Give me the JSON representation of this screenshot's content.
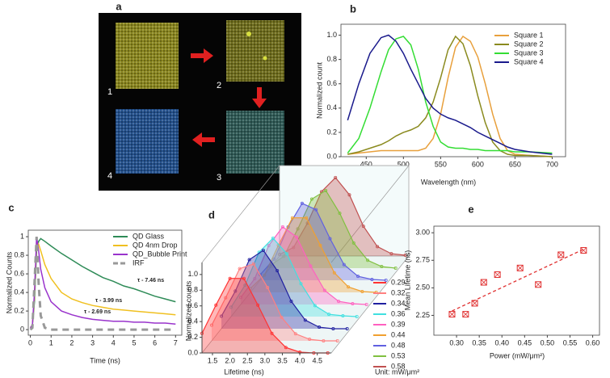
{
  "image_panel": {
    "panel": "a",
    "squares": [
      "1",
      "2",
      "3",
      "4"
    ]
  },
  "chart_data": [
    {
      "type": "line",
      "panel": "b",
      "x_label": "Wavelength (nm)",
      "y_label": "Normalized count",
      "legend": "upper right",
      "x": [
        425,
        440,
        455,
        470,
        480,
        490,
        500,
        510,
        520,
        530,
        540,
        550,
        560,
        570,
        580,
        590,
        600,
        610,
        620,
        630,
        640,
        650,
        670,
        700
      ],
      "series": [
        {
          "name": "Square 1",
          "color": "#e8a03c",
          "values": [
            0.02,
            0.03,
            0.04,
            0.05,
            0.05,
            0.05,
            0.05,
            0.05,
            0.05,
            0.07,
            0.15,
            0.35,
            0.65,
            0.9,
            0.99,
            0.95,
            0.82,
            0.6,
            0.35,
            0.15,
            0.05,
            0.02,
            0.01,
            0
          ]
        },
        {
          "name": "Square 2",
          "color": "#8a8a1e",
          "values": [
            0.02,
            0.04,
            0.07,
            0.1,
            0.13,
            0.17,
            0.2,
            0.22,
            0.25,
            0.32,
            0.45,
            0.65,
            0.88,
            0.99,
            0.93,
            0.75,
            0.5,
            0.28,
            0.12,
            0.05,
            0.02,
            0.01,
            0.01,
            0
          ]
        },
        {
          "name": "Square 3",
          "color": "#33dd33",
          "values": [
            0.03,
            0.15,
            0.4,
            0.7,
            0.88,
            0.97,
            0.99,
            0.92,
            0.72,
            0.45,
            0.25,
            0.12,
            0.08,
            0.07,
            0.07,
            0.06,
            0.06,
            0.05,
            0.05,
            0.05,
            0.05,
            0.04,
            0.04,
            0.03
          ]
        },
        {
          "name": "Square 4",
          "color": "#1a1a8c",
          "values": [
            0.3,
            0.6,
            0.85,
            0.98,
            1.0,
            0.95,
            0.85,
            0.72,
            0.6,
            0.48,
            0.4,
            0.35,
            0.32,
            0.3,
            0.27,
            0.24,
            0.2,
            0.17,
            0.14,
            0.11,
            0.08,
            0.06,
            0.04,
            0.02
          ]
        }
      ],
      "xlim": [
        416,
        718
      ],
      "xticks": [
        450,
        500,
        550,
        600,
        650,
        700
      ],
      "ylim": [
        0,
        1.09
      ],
      "yticks": [
        {
          "value": 0,
          "label": "0.0"
        },
        0.2,
        0.4,
        0.6,
        0.8,
        {
          "value": 1,
          "label": "1.0"
        }
      ]
    },
    {
      "type": "line",
      "panel": "c",
      "x_label": "Time (ns)",
      "y_label": "Normalized Counts",
      "legend": "upper right",
      "x": [
        0,
        0.1,
        0.2,
        0.3,
        0.4,
        0.5,
        0.7,
        1,
        1.5,
        2,
        2.5,
        3,
        3.5,
        4,
        4.5,
        5,
        5.5,
        6,
        6.5,
        7
      ],
      "series": [
        {
          "name": "QD Glass",
          "color": "#2e8b57",
          "values": [
            0.02,
            0.05,
            0.3,
            0.85,
            0.95,
            0.98,
            0.95,
            0.9,
            0.82,
            0.75,
            0.68,
            0.62,
            0.56,
            0.52,
            0.47,
            0.44,
            0.4,
            0.36,
            0.33,
            0.3
          ]
        },
        {
          "name": "QD 4nm Drop",
          "color": "#f0c020",
          "values": [
            0.02,
            0.05,
            0.35,
            0.95,
            0.92,
            0.85,
            0.7,
            0.55,
            0.4,
            0.33,
            0.29,
            0.26,
            0.24,
            0.22,
            0.21,
            0.2,
            0.19,
            0.18,
            0.17,
            0.16
          ]
        },
        {
          "name": "QD_Bubble Print",
          "color": "#9933cc",
          "values": [
            0.02,
            0.05,
            0.4,
            1.0,
            0.85,
            0.65,
            0.45,
            0.3,
            0.2,
            0.16,
            0.13,
            0.11,
            0.1,
            0.09,
            0.09,
            0.08,
            0.08,
            0.07,
            0.07,
            0.06
          ]
        },
        {
          "name": "IRF",
          "color": "#999999",
          "style": "dashed",
          "values": [
            0,
            0.02,
            0.5,
            1.0,
            0.5,
            0.15,
            0.02,
            0,
            0,
            0,
            0,
            0,
            0,
            0,
            0,
            0,
            0,
            0,
            0,
            0
          ]
        }
      ],
      "annotations": [
        "τ - 7.46 ns",
        "τ - 3.99 ns",
        "τ - 2.69 ns"
      ],
      "xlim": [
        -0.1,
        7.3
      ],
      "xticks": [
        0,
        1,
        2,
        3,
        4,
        5,
        6,
        7
      ],
      "ylim": [
        -0.06,
        1.07
      ],
      "yticks": [
        0,
        0.2,
        0.4,
        0.6,
        0.8,
        1
      ]
    },
    {
      "type": "waterfall",
      "panel": "d",
      "x_label": "Lifetime (ns)",
      "y_label": "Normalized counts",
      "unit": "Unit: mW/μm²",
      "x": [
        1.2,
        1.6,
        2.0,
        2.4,
        2.8,
        3.2,
        3.6,
        4.0,
        4.4,
        4.8
      ],
      "series": [
        {
          "name": "0.29",
          "color": "#ff3333",
          "values": [
            0.25,
            0.61,
            0.95,
            0.95,
            0.61,
            0.25,
            0.07,
            0.01,
            0,
            0
          ]
        },
        {
          "name": "0.32",
          "color": "#ff8080",
          "values": [
            0.2,
            0.55,
            0.92,
            0.98,
            0.68,
            0.3,
            0.09,
            0.02,
            0,
            0
          ]
        },
        {
          "name": "0.34",
          "color": "#2020a0",
          "values": [
            0.16,
            0.48,
            0.88,
            1.0,
            0.74,
            0.35,
            0.11,
            0.02,
            0,
            0
          ]
        },
        {
          "name": "0.36",
          "color": "#40e0e0",
          "values": [
            0.12,
            0.4,
            0.82,
            1.0,
            0.8,
            0.42,
            0.14,
            0.03,
            0.01,
            0
          ]
        },
        {
          "name": "0.39",
          "color": "#ff60c0",
          "values": [
            0.09,
            0.33,
            0.75,
            0.99,
            0.86,
            0.49,
            0.18,
            0.04,
            0.01,
            0
          ]
        },
        {
          "name": "0.44",
          "color": "#f0a030",
          "values": [
            0.05,
            0.22,
            0.6,
            0.95,
            0.95,
            0.6,
            0.25,
            0.07,
            0.01,
            0
          ]
        },
        {
          "name": "0.48",
          "color": "#6060e0",
          "values": [
            0.07,
            0.27,
            0.68,
            0.98,
            0.9,
            0.53,
            0.2,
            0.05,
            0.01,
            0
          ]
        },
        {
          "name": "0.53",
          "color": "#80c040",
          "values": [
            0.03,
            0.15,
            0.5,
            0.88,
            0.99,
            0.7,
            0.32,
            0.1,
            0.02,
            0
          ]
        },
        {
          "name": "0.58",
          "color": "#c05050",
          "values": [
            0.02,
            0.11,
            0.42,
            0.82,
            1.0,
            0.78,
            0.38,
            0.12,
            0.03,
            0.01
          ]
        }
      ],
      "xlim": [
        1.2,
        4.9
      ],
      "xticks": [
        1.5,
        {
          "value": 2,
          "label": "2.0"
        },
        2.5,
        {
          "value": 3,
          "label": "3.0"
        },
        3.5,
        {
          "value": 4,
          "label": "4.0"
        },
        4.5
      ],
      "ylim": [
        0,
        1.05
      ],
      "yticks": [
        {
          "value": 0,
          "label": "0.0"
        },
        0.2,
        0.4,
        0.6,
        0.8,
        {
          "value": 1,
          "label": "1.0"
        }
      ]
    },
    {
      "type": "scatter",
      "panel": "e",
      "x_label": "Power (mW/μm²)",
      "y_label": "Mean Lifetime (ns)",
      "color": "#e03030",
      "x": [
        0.29,
        0.32,
        0.34,
        0.36,
        0.39,
        0.44,
        0.48,
        0.53,
        0.58
      ],
      "values": [
        2.26,
        2.26,
        2.36,
        2.55,
        2.62,
        2.68,
        2.53,
        2.8,
        2.84
      ],
      "fit": {
        "x": [
          0.29,
          0.58
        ],
        "values": [
          2.29,
          2.85
        ]
      },
      "xlim": [
        0.25,
        0.615
      ],
      "xticks": [
        {
          "value": 0.3,
          "label": "0.30"
        },
        0.35,
        {
          "value": 0.4,
          "label": "0.40"
        },
        0.45,
        {
          "value": 0.5,
          "label": "0.50"
        },
        0.55,
        {
          "value": 0.6,
          "label": "0.60"
        }
      ],
      "ylim": [
        2.07,
        3.06
      ],
      "yticks": [
        2.25,
        {
          "value": 2.5,
          "label": "2.50"
        },
        2.75,
        {
          "value": 3,
          "label": "3.00"
        }
      ]
    }
  ]
}
